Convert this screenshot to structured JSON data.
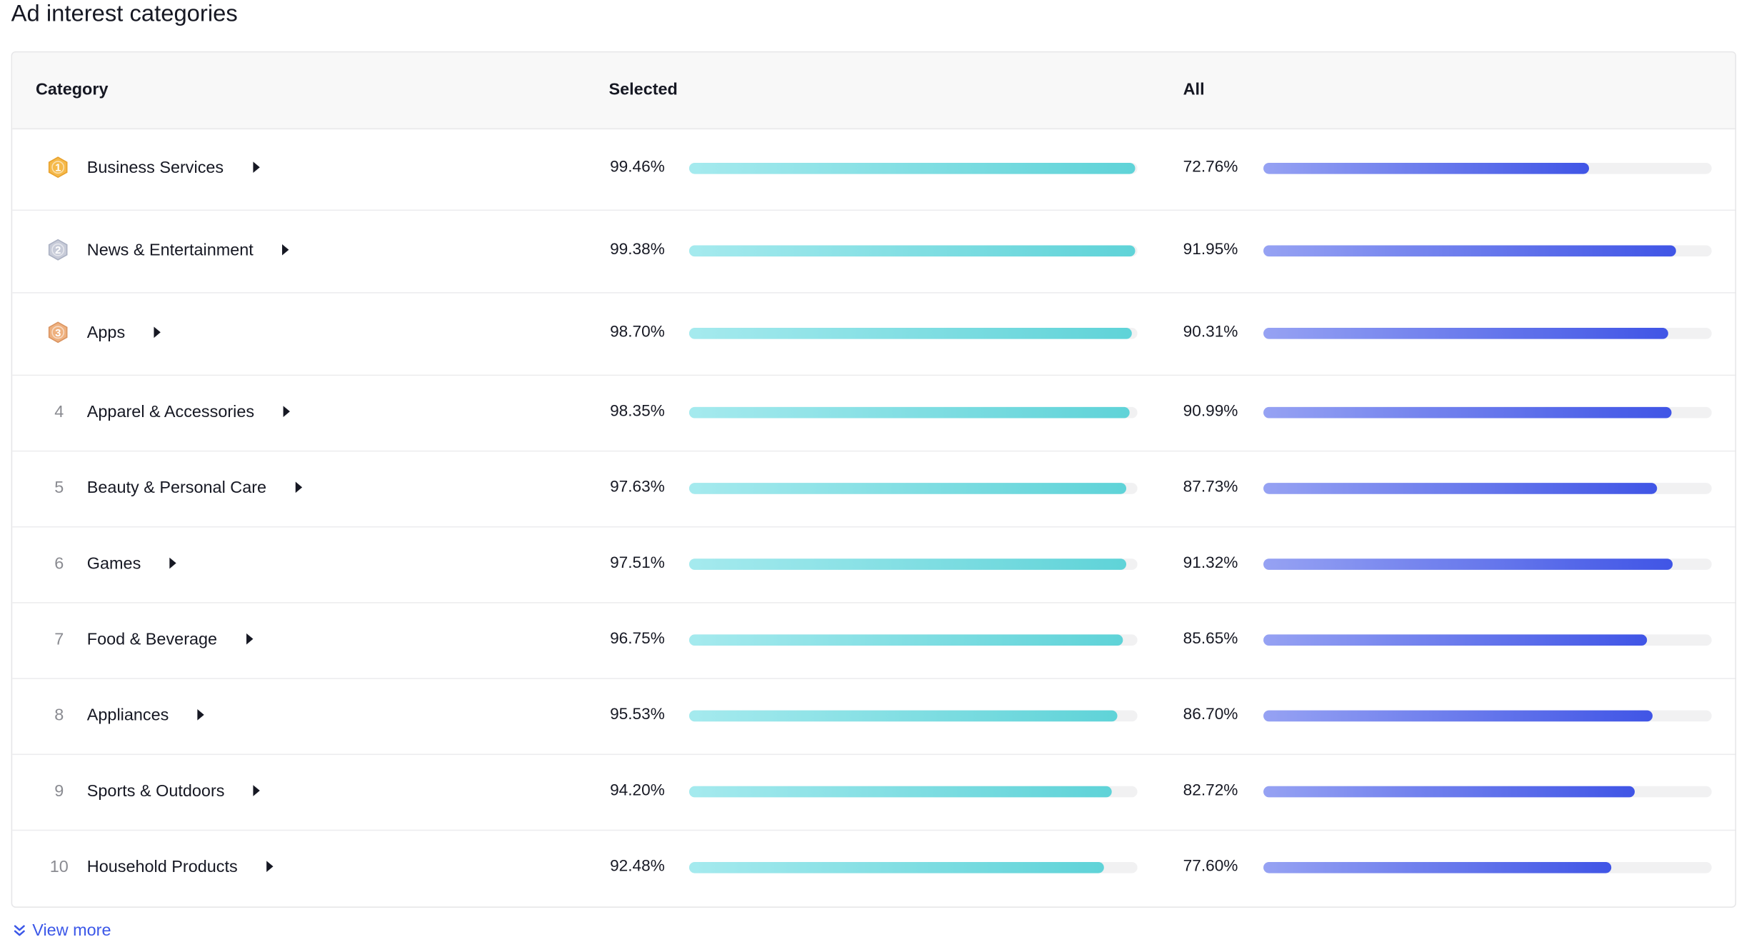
{
  "page": {
    "title": "Ad interest categories"
  },
  "table": {
    "headers": {
      "category": "Category",
      "selected": "Selected",
      "all": "All"
    },
    "rows": [
      {
        "rank": "1",
        "medal": "gold",
        "category": "Business Services",
        "selected": "99.46%",
        "selected_value": 99.46,
        "all": "72.76%",
        "all_value": 72.76
      },
      {
        "rank": "2",
        "medal": "silver",
        "category": "News & Entertainment",
        "selected": "99.38%",
        "selected_value": 99.38,
        "all": "91.95%",
        "all_value": 91.95
      },
      {
        "rank": "3",
        "medal": "bronze",
        "category": "Apps",
        "selected": "98.70%",
        "selected_value": 98.7,
        "all": "90.31%",
        "all_value": 90.31
      },
      {
        "rank": "4",
        "medal": null,
        "category": "Apparel & Accessories",
        "selected": "98.35%",
        "selected_value": 98.35,
        "all": "90.99%",
        "all_value": 90.99
      },
      {
        "rank": "5",
        "medal": null,
        "category": "Beauty & Personal Care",
        "selected": "97.63%",
        "selected_value": 97.63,
        "all": "87.73%",
        "all_value": 87.73
      },
      {
        "rank": "6",
        "medal": null,
        "category": "Games",
        "selected": "97.51%",
        "selected_value": 97.51,
        "all": "91.32%",
        "all_value": 91.32
      },
      {
        "rank": "7",
        "medal": null,
        "category": "Food & Beverage",
        "selected": "96.75%",
        "selected_value": 96.75,
        "all": "85.65%",
        "all_value": 85.65
      },
      {
        "rank": "8",
        "medal": null,
        "category": "Appliances",
        "selected": "95.53%",
        "selected_value": 95.53,
        "all": "86.70%",
        "all_value": 86.7
      },
      {
        "rank": "9",
        "medal": null,
        "category": "Sports & Outdoors",
        "selected": "94.20%",
        "selected_value": 94.2,
        "all": "82.72%",
        "all_value": 82.72
      },
      {
        "rank": "10",
        "medal": null,
        "category": "Household Products",
        "selected": "92.48%",
        "selected_value": 92.48,
        "all": "77.60%",
        "all_value": 77.6
      }
    ]
  },
  "footer": {
    "view_more_label": "View more",
    "view_more_icon": "chevrons-down-icon"
  },
  "colors": {
    "selected_bar_start": "#a5eaee",
    "selected_bar_end": "#5fd3d8",
    "all_bar_start": "#96a2f3",
    "all_bar_end": "#4055e6",
    "link": "#3b57e8",
    "medal_gold": "#f5b94a",
    "medal_silver": "#c7cbd8",
    "medal_bronze": "#eeb07e"
  }
}
